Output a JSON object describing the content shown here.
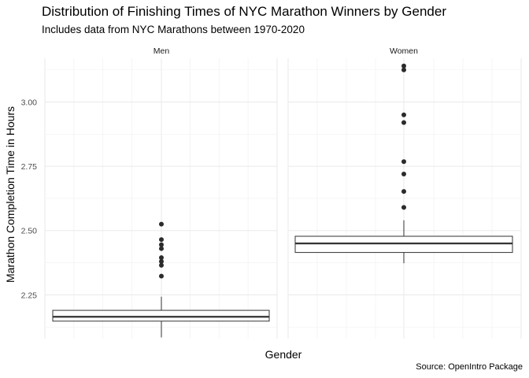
{
  "chart_data": {
    "type": "boxplot",
    "title": "Distribution of Finishing Times of NYC Marathon Winners by Gender",
    "subtitle": "Includes data from NYC Marathons between 1970-2020",
    "caption": "Source: OpenIntro Package",
    "xlabel": "Gender",
    "ylabel": "Marathon Completion Time in Hours",
    "ylim": [
      2.08,
      3.17
    ],
    "yticks": [
      "2.25",
      "2.50",
      "2.75",
      "3.00"
    ],
    "grid": true,
    "facets": [
      {
        "label": "Men",
        "q1": 2.148,
        "median": 2.165,
        "q3": 2.19,
        "whisker_low": 2.085,
        "whisker_high": 2.243,
        "outliers": [
          2.323,
          2.365,
          2.38,
          2.395,
          2.43,
          2.445,
          2.465,
          2.525
        ]
      },
      {
        "label": "Women",
        "q1": 2.415,
        "median": 2.45,
        "q3": 2.478,
        "whisker_low": 2.373,
        "whisker_high": 2.54,
        "outliers": [
          2.59,
          2.652,
          2.72,
          2.768,
          2.92,
          2.95,
          3.125,
          3.14
        ]
      }
    ]
  }
}
